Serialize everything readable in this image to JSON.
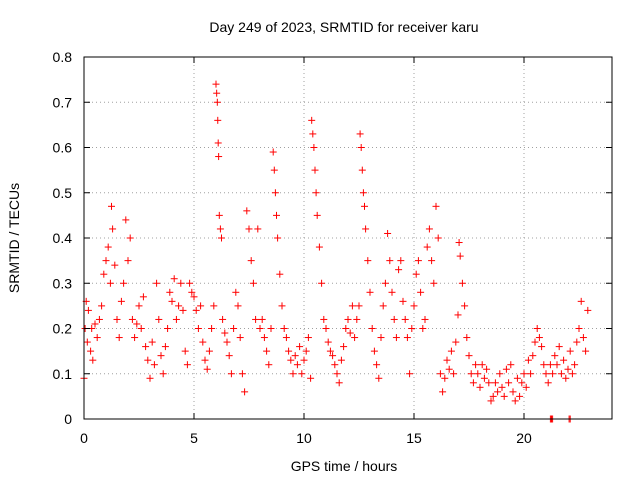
{
  "chart_data": {
    "type": "scatter",
    "title": "Day 249 of 2023, SRMTID for receiver karu",
    "xlabel": "GPS time / hours",
    "ylabel": "SRMTID / TECUs",
    "xlim": [
      0,
      24
    ],
    "ylim": [
      0,
      0.8
    ],
    "xticks": [
      0,
      5,
      10,
      15,
      20
    ],
    "xtick_labels": [
      "0",
      "5",
      "10",
      "15",
      "20"
    ],
    "yticks": [
      0,
      0.1,
      0.2,
      0.3,
      0.4,
      0.5,
      0.6,
      0.7,
      0.8
    ],
    "ytick_labels": [
      "0",
      "0.1",
      "0.2",
      "0.3",
      "0.4",
      "0.5",
      "0.6",
      "0.7",
      "0.8"
    ],
    "grid": true,
    "marker": "plus",
    "series": [
      {
        "name": "SRMTID",
        "color": "#ff0000",
        "points": [
          [
            0.0,
            0.09
          ],
          [
            0.05,
            0.2
          ],
          [
            0.1,
            0.26
          ],
          [
            0.15,
            0.17
          ],
          [
            0.2,
            0.24
          ],
          [
            0.3,
            0.15
          ],
          [
            0.35,
            0.2
          ],
          [
            0.4,
            0.13
          ],
          [
            0.5,
            0.21
          ],
          [
            0.6,
            0.18
          ],
          [
            0.7,
            0.22
          ],
          [
            0.8,
            0.25
          ],
          [
            0.9,
            0.32
          ],
          [
            1.0,
            0.35
          ],
          [
            1.1,
            0.38
          ],
          [
            1.2,
            0.3
          ],
          [
            1.25,
            0.47
          ],
          [
            1.3,
            0.42
          ],
          [
            1.4,
            0.34
          ],
          [
            1.5,
            0.22
          ],
          [
            1.6,
            0.18
          ],
          [
            1.7,
            0.26
          ],
          [
            1.8,
            0.3
          ],
          [
            1.9,
            0.44
          ],
          [
            2.0,
            0.35
          ],
          [
            2.1,
            0.4
          ],
          [
            2.2,
            0.22
          ],
          [
            2.3,
            0.18
          ],
          [
            2.4,
            0.21
          ],
          [
            2.5,
            0.25
          ],
          [
            2.6,
            0.2
          ],
          [
            2.7,
            0.27
          ],
          [
            2.8,
            0.16
          ],
          [
            2.9,
            0.13
          ],
          [
            3.0,
            0.09
          ],
          [
            3.1,
            0.17
          ],
          [
            3.2,
            0.12
          ],
          [
            3.3,
            0.3
          ],
          [
            3.4,
            0.22
          ],
          [
            3.5,
            0.14
          ],
          [
            3.6,
            0.1
          ],
          [
            3.7,
            0.16
          ],
          [
            3.8,
            0.2
          ],
          [
            3.9,
            0.28
          ],
          [
            4.0,
            0.26
          ],
          [
            4.1,
            0.31
          ],
          [
            4.2,
            0.22
          ],
          [
            4.3,
            0.25
          ],
          [
            4.4,
            0.3
          ],
          [
            4.5,
            0.24
          ],
          [
            4.6,
            0.15
          ],
          [
            4.7,
            0.12
          ],
          [
            4.8,
            0.3
          ],
          [
            4.9,
            0.28
          ],
          [
            5.0,
            0.27
          ],
          [
            5.1,
            0.24
          ],
          [
            5.2,
            0.2
          ],
          [
            5.3,
            0.25
          ],
          [
            5.4,
            0.17
          ],
          [
            5.5,
            0.13
          ],
          [
            5.6,
            0.11
          ],
          [
            5.7,
            0.15
          ],
          [
            5.8,
            0.2
          ],
          [
            5.9,
            0.25
          ],
          [
            6.0,
            0.74
          ],
          [
            6.03,
            0.72
          ],
          [
            6.06,
            0.7
          ],
          [
            6.08,
            0.66
          ],
          [
            6.1,
            0.61
          ],
          [
            6.12,
            0.58
          ],
          [
            6.15,
            0.45
          ],
          [
            6.2,
            0.42
          ],
          [
            6.25,
            0.4
          ],
          [
            6.3,
            0.22
          ],
          [
            6.4,
            0.19
          ],
          [
            6.5,
            0.17
          ],
          [
            6.6,
            0.14
          ],
          [
            6.7,
            0.1
          ],
          [
            6.8,
            0.2
          ],
          [
            6.9,
            0.28
          ],
          [
            7.0,
            0.25
          ],
          [
            7.1,
            0.18
          ],
          [
            7.2,
            0.1
          ],
          [
            7.3,
            0.06
          ],
          [
            7.4,
            0.46
          ],
          [
            7.5,
            0.42
          ],
          [
            7.6,
            0.35
          ],
          [
            7.7,
            0.3
          ],
          [
            7.8,
            0.22
          ],
          [
            7.9,
            0.42
          ],
          [
            8.0,
            0.2
          ],
          [
            8.1,
            0.22
          ],
          [
            8.2,
            0.18
          ],
          [
            8.3,
            0.15
          ],
          [
            8.4,
            0.12
          ],
          [
            8.5,
            0.2
          ],
          [
            8.6,
            0.59
          ],
          [
            8.65,
            0.55
          ],
          [
            8.7,
            0.5
          ],
          [
            8.75,
            0.45
          ],
          [
            8.8,
            0.4
          ],
          [
            8.9,
            0.32
          ],
          [
            9.0,
            0.25
          ],
          [
            9.1,
            0.2
          ],
          [
            9.2,
            0.18
          ],
          [
            9.3,
            0.15
          ],
          [
            9.4,
            0.13
          ],
          [
            9.5,
            0.1
          ],
          [
            9.6,
            0.14
          ],
          [
            9.7,
            0.12
          ],
          [
            9.8,
            0.16
          ],
          [
            9.9,
            0.1
          ],
          [
            10.0,
            0.13
          ],
          [
            10.1,
            0.15
          ],
          [
            10.2,
            0.18
          ],
          [
            10.3,
            0.09
          ],
          [
            10.35,
            0.66
          ],
          [
            10.4,
            0.63
          ],
          [
            10.45,
            0.6
          ],
          [
            10.5,
            0.55
          ],
          [
            10.55,
            0.5
          ],
          [
            10.6,
            0.45
          ],
          [
            10.7,
            0.38
          ],
          [
            10.8,
            0.3
          ],
          [
            10.9,
            0.22
          ],
          [
            11.0,
            0.2
          ],
          [
            11.1,
            0.17
          ],
          [
            11.2,
            0.15
          ],
          [
            11.3,
            0.14
          ],
          [
            11.4,
            0.12
          ],
          [
            11.5,
            0.1
          ],
          [
            11.6,
            0.08
          ],
          [
            11.7,
            0.13
          ],
          [
            11.8,
            0.16
          ],
          [
            11.9,
            0.2
          ],
          [
            12.0,
            0.22
          ],
          [
            12.1,
            0.19
          ],
          [
            12.2,
            0.25
          ],
          [
            12.3,
            0.18
          ],
          [
            12.4,
            0.22
          ],
          [
            12.5,
            0.25
          ],
          [
            12.55,
            0.63
          ],
          [
            12.6,
            0.6
          ],
          [
            12.65,
            0.55
          ],
          [
            12.7,
            0.5
          ],
          [
            12.75,
            0.47
          ],
          [
            12.8,
            0.42
          ],
          [
            12.9,
            0.35
          ],
          [
            13.0,
            0.28
          ],
          [
            13.1,
            0.2
          ],
          [
            13.2,
            0.15
          ],
          [
            13.3,
            0.12
          ],
          [
            13.4,
            0.09
          ],
          [
            13.5,
            0.18
          ],
          [
            13.6,
            0.25
          ],
          [
            13.7,
            0.3
          ],
          [
            13.8,
            0.41
          ],
          [
            13.9,
            0.35
          ],
          [
            14.0,
            0.28
          ],
          [
            14.1,
            0.22
          ],
          [
            14.2,
            0.18
          ],
          [
            14.3,
            0.33
          ],
          [
            14.4,
            0.35
          ],
          [
            14.5,
            0.26
          ],
          [
            14.6,
            0.22
          ],
          [
            14.7,
            0.18
          ],
          [
            14.8,
            0.1
          ],
          [
            14.9,
            0.2
          ],
          [
            15.0,
            0.25
          ],
          [
            15.1,
            0.32
          ],
          [
            15.2,
            0.35
          ],
          [
            15.3,
            0.28
          ],
          [
            15.4,
            0.2
          ],
          [
            15.5,
            0.22
          ],
          [
            15.6,
            0.38
          ],
          [
            15.7,
            0.42
          ],
          [
            15.8,
            0.35
          ],
          [
            15.9,
            0.3
          ],
          [
            16.0,
            0.47
          ],
          [
            16.1,
            0.4
          ],
          [
            16.2,
            0.1
          ],
          [
            16.3,
            0.06
          ],
          [
            16.4,
            0.09
          ],
          [
            16.5,
            0.13
          ],
          [
            16.6,
            0.11
          ],
          [
            16.7,
            0.15
          ],
          [
            16.8,
            0.1
          ],
          [
            16.9,
            0.17
          ],
          [
            17.0,
            0.23
          ],
          [
            17.05,
            0.39
          ],
          [
            17.1,
            0.36
          ],
          [
            17.2,
            0.3
          ],
          [
            17.3,
            0.25
          ],
          [
            17.4,
            0.18
          ],
          [
            17.5,
            0.14
          ],
          [
            17.6,
            0.1
          ],
          [
            17.7,
            0.08
          ],
          [
            17.8,
            0.12
          ],
          [
            17.9,
            0.1
          ],
          [
            18.0,
            0.07
          ],
          [
            18.1,
            0.12
          ],
          [
            18.2,
            0.09
          ],
          [
            18.3,
            0.11
          ],
          [
            18.4,
            0.08
          ],
          [
            18.5,
            0.04
          ],
          [
            18.6,
            0.05
          ],
          [
            18.7,
            0.08
          ],
          [
            18.8,
            0.06
          ],
          [
            18.9,
            0.1
          ],
          [
            19.0,
            0.07
          ],
          [
            19.1,
            0.05
          ],
          [
            19.2,
            0.11
          ],
          [
            19.3,
            0.08
          ],
          [
            19.4,
            0.12
          ],
          [
            19.5,
            0.06
          ],
          [
            19.6,
            0.04
          ],
          [
            19.7,
            0.09
          ],
          [
            19.8,
            0.05
          ],
          [
            19.9,
            0.08
          ],
          [
            20.0,
            0.1
          ],
          [
            20.1,
            0.07
          ],
          [
            20.2,
            0.13
          ],
          [
            20.3,
            0.1
          ],
          [
            20.4,
            0.14
          ],
          [
            20.5,
            0.17
          ],
          [
            20.6,
            0.2
          ],
          [
            20.7,
            0.18
          ],
          [
            20.8,
            0.16
          ],
          [
            20.9,
            0.12
          ],
          [
            21.0,
            0.1
          ],
          [
            21.1,
            0.08
          ],
          [
            21.2,
            0.12
          ],
          [
            21.3,
            0.1
          ],
          [
            21.4,
            0.14
          ],
          [
            21.5,
            0.12
          ],
          [
            21.6,
            0.16
          ],
          [
            21.7,
            0.1
          ],
          [
            21.8,
            0.13
          ],
          [
            21.9,
            0.09
          ],
          [
            22.0,
            0.11
          ],
          [
            22.1,
            0.15
          ],
          [
            22.2,
            0.1
          ],
          [
            22.3,
            0.12
          ],
          [
            22.4,
            0.17
          ],
          [
            22.5,
            0.2
          ],
          [
            22.6,
            0.26
          ],
          [
            22.7,
            0.18
          ],
          [
            22.8,
            0.15
          ],
          [
            22.9,
            0.24
          ],
          [
            21.2,
            0.0
          ],
          [
            21.25,
            0.0
          ],
          [
            21.3,
            0.0
          ],
          [
            22.05,
            0.0
          ],
          [
            22.1,
            0.0
          ]
        ]
      }
    ]
  }
}
